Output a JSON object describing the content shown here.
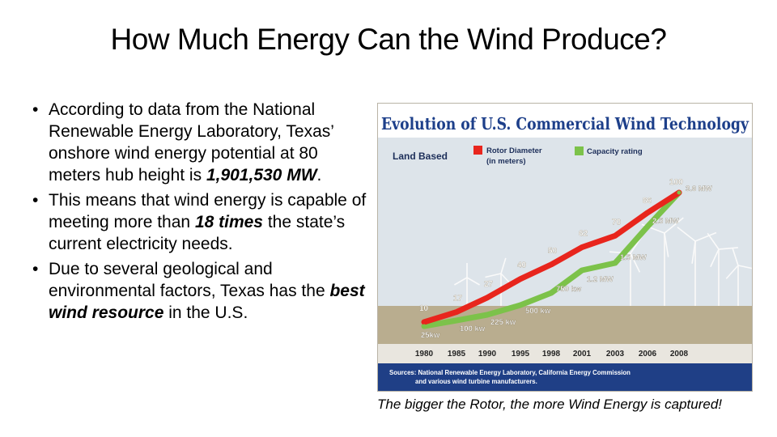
{
  "slide": {
    "title": "How Much Energy Can the Wind Produce?",
    "bullets": [
      {
        "pre": "According to data from the National Renewable Energy Laboratory, Texas’ onshore wind energy potential at 80 meters hub height is ",
        "em": "1,901,530 MW",
        "post": "."
      },
      {
        "pre": "This means that wind energy is capable of meeting more than ",
        "em": "18 times",
        "post": " the state’s current electricity needs."
      },
      {
        "pre": "Due to several geological and environmental factors, Texas has the ",
        "em": "best wind resource",
        "post": " in the U.S."
      }
    ],
    "caption": "The bigger the Rotor, the more Wind Energy is captured!"
  },
  "chart_data": {
    "type": "line",
    "title": "Evolution of U.S. Commercial Wind Technology",
    "subtitle": "Land Based",
    "categories": [
      "1980",
      "1985",
      "1990",
      "1995",
      "1998",
      "2001",
      "2003",
      "2006",
      "2008"
    ],
    "series": [
      {
        "name": "Rotor Diameter (in meters)",
        "color": "#e8251d",
        "values": [
          10,
          17,
          27,
          40,
          50,
          62,
          70,
          86,
          100
        ],
        "labels": [
          "10",
          "17",
          "27",
          "40",
          "50",
          "62",
          "70",
          "86",
          "100"
        ]
      },
      {
        "name": "Capacity rating",
        "color": "#7cc24a",
        "values": [
          0.025,
          0.1,
          0.225,
          0.5,
          0.75,
          1.2,
          1.5,
          2.5,
          3.6
        ],
        "labels": [
          "25kw",
          "100 kw",
          "225 kw",
          "500 kw",
          "750 kw",
          "1.2 MW",
          "1.5 MW",
          "2.5 MW",
          "3.6 MW"
        ]
      }
    ],
    "source": "Sources: National Renewable Energy Laboratory, California Energy Commission and various wind turbine manufacturers.",
    "colors": {
      "title_bg": "#ffffff",
      "title_text": "#1d3f8a",
      "footer_bg": "#1f3f86",
      "footer_text": "#ffffff"
    }
  }
}
